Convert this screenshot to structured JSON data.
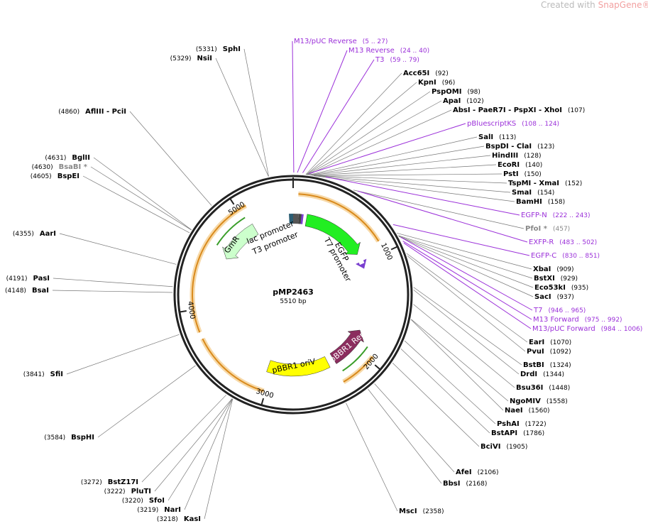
{
  "watermark": {
    "prefix": "Created with",
    "brand": "SnapGene®"
  },
  "plasmid": {
    "name": "pMP2463",
    "size": "5510 bp"
  },
  "ticks": [
    "1000",
    "2000",
    "3000",
    "4000",
    "5000"
  ],
  "features": [
    "EGFP",
    "T7 promoter",
    "lac promoter",
    "T3 promoter",
    "GmR",
    "pBBR1 oriV",
    "pBBR1 Rep"
  ],
  "right_labels": [
    {
      "name": "M13/pUC Reverse",
      "pos": "(5 .. 27)",
      "color": "#9b30d9"
    },
    {
      "name": "M13 Reverse",
      "pos": "(24 .. 40)",
      "color": "#9b30d9"
    },
    {
      "name": "T3",
      "pos": "(59 .. 79)",
      "color": "#9b30d9"
    },
    {
      "name": "Acc65I",
      "pos": "(92)"
    },
    {
      "name": "KpnI",
      "pos": "(96)"
    },
    {
      "name": "PspOMI",
      "pos": "(98)"
    },
    {
      "name": "ApaI",
      "pos": "(102)"
    },
    {
      "name": "AbsI  - PaeR7I  - PspXI  - XhoI",
      "pos": "(107)"
    },
    {
      "name": "pBluescriptKS",
      "pos": "(108 .. 124)",
      "color": "#9b30d9"
    },
    {
      "name": "SalI",
      "pos": "(113)"
    },
    {
      "name": "BspDI  - ClaI",
      "pos": "(123)"
    },
    {
      "name": "HindIII",
      "pos": "(128)"
    },
    {
      "name": "EcoRI",
      "pos": "(140)"
    },
    {
      "name": "PstI",
      "pos": "(150)"
    },
    {
      "name": "TspMI  - XmaI",
      "pos": "(152)"
    },
    {
      "name": "SmaI",
      "pos": "(154)"
    },
    {
      "name": "BamHI",
      "pos": "(158)"
    },
    {
      "name": "EGFP-N",
      "pos": "(222 .. 243)",
      "color": "#9b30d9"
    },
    {
      "name": "PfoI *",
      "pos": "(457)",
      "color": "#888888"
    },
    {
      "name": "EXFP-R",
      "pos": "(483 .. 502)",
      "color": "#9b30d9"
    },
    {
      "name": "EGFP-C",
      "pos": "(830 .. 851)",
      "color": "#9b30d9"
    },
    {
      "name": "XbaI",
      "pos": "(909)"
    },
    {
      "name": "BstXI",
      "pos": "(929)"
    },
    {
      "name": "Eco53kI",
      "pos": "(935)"
    },
    {
      "name": "SacI",
      "pos": "(937)"
    },
    {
      "name": "T7",
      "pos": "(946 .. 965)",
      "color": "#9b30d9"
    },
    {
      "name": "M13 Forward",
      "pos": "(975 .. 992)",
      "color": "#9b30d9"
    },
    {
      "name": "M13/pUC Forward",
      "pos": "(984 .. 1006)",
      "color": "#9b30d9"
    },
    {
      "name": "EarI",
      "pos": "(1070)"
    },
    {
      "name": "PvuI",
      "pos": "(1092)"
    },
    {
      "name": "BstBI",
      "pos": "(1324)"
    },
    {
      "name": "DrdI",
      "pos": "(1344)"
    },
    {
      "name": "Bsu36I",
      "pos": "(1448)"
    },
    {
      "name": "NgoMIV",
      "pos": "(1558)"
    },
    {
      "name": "NaeI",
      "pos": "(1560)"
    },
    {
      "name": "PshAI",
      "pos": "(1722)"
    },
    {
      "name": "BstAPI",
      "pos": "(1786)"
    },
    {
      "name": "BciVI",
      "pos": "(1905)"
    },
    {
      "name": "AfeI",
      "pos": "(2106)"
    },
    {
      "name": "BbsI",
      "pos": "(2168)"
    },
    {
      "name": "MscI",
      "pos": "(2358)"
    }
  ],
  "left_labels": [
    {
      "name": "SphI",
      "pos": "(5331)"
    },
    {
      "name": "NsiI",
      "pos": "(5329)"
    },
    {
      "name": "AflIII  - PciI",
      "pos": "(4860)"
    },
    {
      "name": "BglII",
      "pos": "(4631)"
    },
    {
      "name": "BsaBI *",
      "pos": "(4630)",
      "color": "#888888"
    },
    {
      "name": "BspEI",
      "pos": "(4605)"
    },
    {
      "name": "AarI",
      "pos": "(4355)"
    },
    {
      "name": "PasI",
      "pos": "(4191)"
    },
    {
      "name": "BsaI",
      "pos": "(4148)"
    },
    {
      "name": "SfiI",
      "pos": "(3841)"
    },
    {
      "name": "BspHI",
      "pos": "(3584)"
    },
    {
      "name": "BstZ17I",
      "pos": "(3272)"
    },
    {
      "name": "PluTI",
      "pos": "(3222)"
    },
    {
      "name": "SfoI",
      "pos": "(3220)"
    },
    {
      "name": "NarI",
      "pos": "(3219)"
    },
    {
      "name": "KasI",
      "pos": "(3218)"
    }
  ]
}
